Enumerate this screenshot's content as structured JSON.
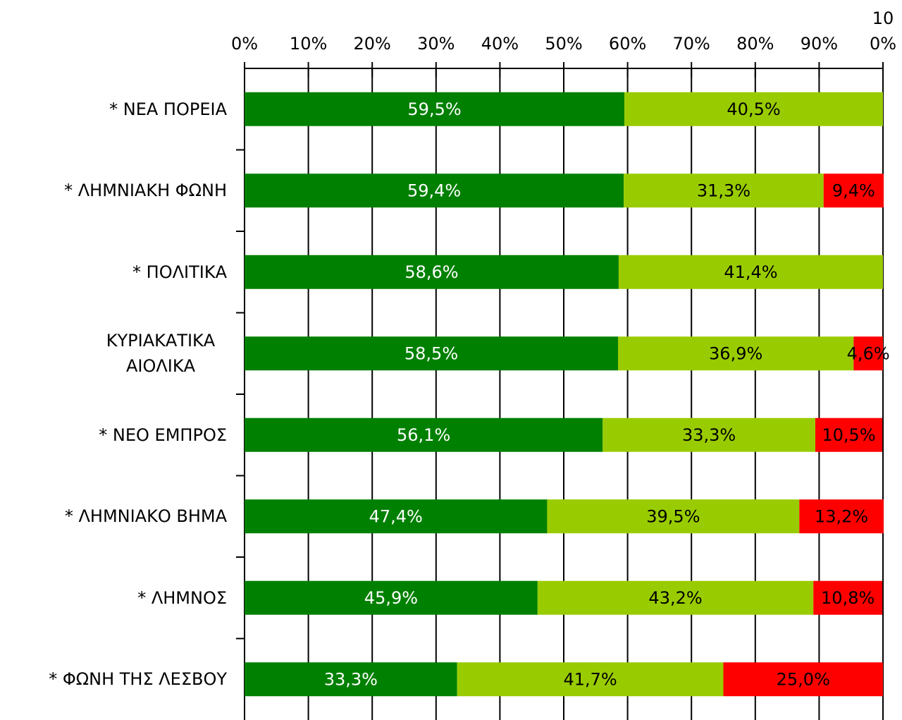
{
  "chart_data": {
    "type": "stacked_barh",
    "categories": [
      "* ΝΕΑ ΠΟΡΕΙΑ",
      "* ΛΗΜΝΙΑΚΗ ΦΩΝΗ",
      "* ΠΟΛΙΤΙΚΑ",
      "ΚΥΡΙΑΚΑΤΙΚΑ ΑΙΟΛΙΚΑ",
      "* ΝΕΟ ΕΜΠΡΟΣ",
      "* ΛΗΜΝΙΑΚΟ ΒΗΜΑ",
      "* ΛΗΜΝΟΣ",
      "* ΦΩΝΗ ΤΗΣ ΛΕΣΒΟΥ"
    ],
    "series": [
      {
        "color": "#008000",
        "values": [
          59.5,
          59.4,
          58.6,
          58.5,
          56.1,
          47.4,
          45.9,
          33.3
        ],
        "value_labels": [
          "59,5%",
          "59,4%",
          "58,6%",
          "58,5%",
          "56,1%",
          "47,4%",
          "45,9%",
          "33,3%"
        ]
      },
      {
        "color": "#99cc00",
        "values": [
          40.5,
          31.3,
          41.4,
          36.9,
          33.3,
          39.5,
          43.2,
          41.7
        ],
        "value_labels": [
          "40,5%",
          "31,3%",
          "41,4%",
          "36,9%",
          "33,3%",
          "39,5%",
          "43,2%",
          "41,7%"
        ]
      },
      {
        "color": "#ff0000",
        "values": [
          null,
          9.4,
          null,
          4.6,
          10.5,
          13.2,
          10.8,
          25.0
        ],
        "value_labels": [
          null,
          "9,4%",
          null,
          "4,6%",
          "10,5%",
          "13,2%",
          "10,8%",
          "25,0%"
        ]
      }
    ],
    "xlim": [
      0,
      100
    ],
    "xticks": [
      {
        "value": 0,
        "label": "0%"
      },
      {
        "value": 10,
        "label": "10%"
      },
      {
        "value": 20,
        "label": "20%"
      },
      {
        "value": 30,
        "label": "30%"
      },
      {
        "value": 40,
        "label": "40%"
      },
      {
        "value": 50,
        "label": "50%"
      },
      {
        "value": 60,
        "label": "60%"
      },
      {
        "value": 70,
        "label": "70%"
      },
      {
        "value": 80,
        "label": "80%"
      },
      {
        "value": 90,
        "label": "90%"
      },
      {
        "value": 100,
        "label": "100%"
      }
    ],
    "grid": true
  }
}
